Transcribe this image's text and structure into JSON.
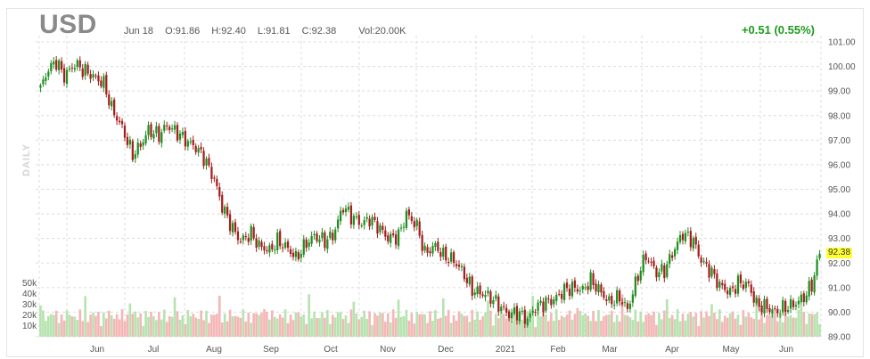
{
  "header": {
    "symbol": "USD",
    "date": "Jun 18",
    "open": "O:91.86",
    "high": "H:92.40",
    "low": "L:91.81",
    "close": "C:92.38",
    "volume": "Vol:20.00K",
    "change": "+0.51 (0.55%)",
    "period": "DAILY",
    "last_price": "92.38"
  },
  "colors": {
    "up": "#1e8f1e",
    "down": "#a51e1e",
    "vol_up": "#b7e3b0",
    "vol_down": "#f4b7b7",
    "grid": "#dcdcdc",
    "change": "#1e9b1e",
    "last_price_bg": "#ffff33"
  },
  "chart_data": {
    "type": "candlestick",
    "title": "USD",
    "ylim": [
      89.0,
      101.0
    ],
    "y_ticks": [
      "101.00",
      "100.00",
      "99.00",
      "98.00",
      "97.00",
      "96.00",
      "95.00",
      "94.00",
      "93.00",
      "92.00",
      "91.00",
      "90.00",
      "89.00"
    ],
    "volume_ticks": [
      "50k",
      "40k",
      "30k",
      "20k",
      "10k"
    ],
    "x_ticks": [
      "Jun",
      "Jul",
      "Aug",
      "Sep",
      "Oct",
      "Nov",
      "Dec",
      "2021",
      "Feb",
      "Mar",
      "Apr",
      "May",
      "Jun"
    ],
    "grid": true,
    "close_path": [
      {
        "t": 0,
        "v": 99.1
      },
      {
        "t": 3,
        "v": 99.9
      },
      {
        "t": 6,
        "v": 100.2
      },
      {
        "t": 9,
        "v": 99.6
      },
      {
        "t": 13,
        "v": 100.1
      },
      {
        "t": 17,
        "v": 99.8
      },
      {
        "t": 20,
        "v": 99.6
      },
      {
        "t": 24,
        "v": 99.3
      },
      {
        "t": 27,
        "v": 98.3
      },
      {
        "t": 31,
        "v": 97.5
      },
      {
        "t": 35,
        "v": 96.4
      },
      {
        "t": 38,
        "v": 96.8
      },
      {
        "t": 41,
        "v": 97.4
      },
      {
        "t": 45,
        "v": 97.2
      },
      {
        "t": 48,
        "v": 97.6
      },
      {
        "t": 52,
        "v": 97.3
      },
      {
        "t": 55,
        "v": 97.0
      },
      {
        "t": 59,
        "v": 96.7
      },
      {
        "t": 62,
        "v": 96.3
      },
      {
        "t": 66,
        "v": 95.4
      },
      {
        "t": 69,
        "v": 94.3
      },
      {
        "t": 73,
        "v": 93.4
      },
      {
        "t": 76,
        "v": 92.9
      },
      {
        "t": 80,
        "v": 93.2
      },
      {
        "t": 83,
        "v": 92.7
      },
      {
        "t": 87,
        "v": 92.5
      },
      {
        "t": 90,
        "v": 92.9
      },
      {
        "t": 94,
        "v": 92.6
      },
      {
        "t": 97,
        "v": 92.2
      },
      {
        "t": 101,
        "v": 92.8
      },
      {
        "t": 104,
        "v": 93.1
      },
      {
        "t": 108,
        "v": 92.9
      },
      {
        "t": 111,
        "v": 93.1
      },
      {
        "t": 115,
        "v": 94.3
      },
      {
        "t": 118,
        "v": 93.9
      },
      {
        "t": 122,
        "v": 93.6
      },
      {
        "t": 125,
        "v": 93.8
      },
      {
        "t": 129,
        "v": 93.4
      },
      {
        "t": 132,
        "v": 93.0
      },
      {
        "t": 136,
        "v": 93.1
      },
      {
        "t": 139,
        "v": 94.0
      },
      {
        "t": 143,
        "v": 93.5
      },
      {
        "t": 146,
        "v": 92.4
      },
      {
        "t": 150,
        "v": 92.7
      },
      {
        "t": 153,
        "v": 92.3
      },
      {
        "t": 157,
        "v": 92.1
      },
      {
        "t": 160,
        "v": 91.7
      },
      {
        "t": 164,
        "v": 90.9
      },
      {
        "t": 167,
        "v": 90.8
      },
      {
        "t": 171,
        "v": 90.6
      },
      {
        "t": 174,
        "v": 90.3
      },
      {
        "t": 178,
        "v": 89.9
      },
      {
        "t": 181,
        "v": 90.0
      },
      {
        "t": 185,
        "v": 89.7
      },
      {
        "t": 188,
        "v": 90.2
      },
      {
        "t": 192,
        "v": 90.4
      },
      {
        "t": 195,
        "v": 90.5
      },
      {
        "t": 199,
        "v": 90.9
      },
      {
        "t": 202,
        "v": 91.0
      },
      {
        "t": 206,
        "v": 90.9
      },
      {
        "t": 209,
        "v": 91.3
      },
      {
        "t": 213,
        "v": 90.8
      },
      {
        "t": 216,
        "v": 90.4
      },
      {
        "t": 220,
        "v": 90.6
      },
      {
        "t": 223,
        "v": 90.1
      },
      {
        "t": 227,
        "v": 91.5
      },
      {
        "t": 230,
        "v": 92.3
      },
      {
        "t": 234,
        "v": 91.6
      },
      {
        "t": 237,
        "v": 91.7
      },
      {
        "t": 241,
        "v": 92.6
      },
      {
        "t": 244,
        "v": 93.2
      },
      {
        "t": 248,
        "v": 92.9
      },
      {
        "t": 251,
        "v": 92.1
      },
      {
        "t": 255,
        "v": 91.6
      },
      {
        "t": 258,
        "v": 91.1
      },
      {
        "t": 262,
        "v": 90.8
      },
      {
        "t": 265,
        "v": 91.2
      },
      {
        "t": 269,
        "v": 91.1
      },
      {
        "t": 272,
        "v": 90.3
      },
      {
        "t": 276,
        "v": 90.2
      },
      {
        "t": 279,
        "v": 90.0
      },
      {
        "t": 283,
        "v": 90.2
      },
      {
        "t": 286,
        "v": 90.3
      },
      {
        "t": 290,
        "v": 90.6
      },
      {
        "t": 293,
        "v": 91.1
      },
      {
        "t": 296,
        "v": 92.38
      }
    ]
  }
}
